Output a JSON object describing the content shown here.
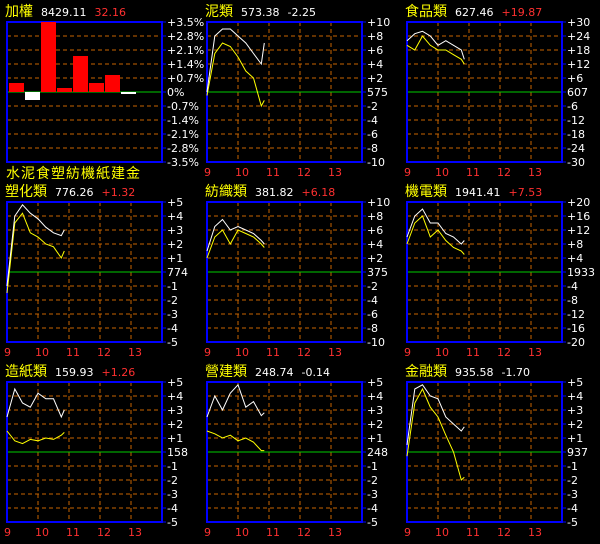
{
  "colors": {
    "background": "#000000",
    "frame": "#0000ff",
    "grid": "#c86400",
    "baseline": "#00cc00",
    "text": "#ffffff",
    "title": "#ffff00",
    "up": "#ff3030",
    "down": "#ffffff",
    "line_primary": "#ffff00",
    "line_secondary": "#ffffff",
    "bar_up": "#ff0000",
    "bar_down": "#ffffff"
  },
  "index_panel": {
    "name": "加權",
    "value": "8429.11",
    "change": "32.16",
    "change_dir": "up",
    "yticks": [
      "+3.5%",
      "+2.8%",
      "+2.1%",
      "+1.4%",
      "+0.7%",
      "0%",
      "-0.7%",
      "-1.4%",
      "-2.1%",
      "-2.8%",
      "-3.5%"
    ],
    "category_labels": [
      "水",
      "泥",
      "食",
      "塑",
      "紡",
      "機",
      "紙",
      "建",
      "金"
    ]
  },
  "panels": [
    {
      "name": "泥類",
      "value": "573.38",
      "change": "-2.25",
      "change_dir": "down",
      "yticks": [
        "+10",
        "+8",
        "+6",
        "+4",
        "+2",
        "575",
        "-2",
        "-4",
        "-6",
        "-8",
        "-10"
      ],
      "xticks": [
        "9",
        "10",
        "11",
        "12",
        "13"
      ]
    },
    {
      "name": "食品類",
      "value": "627.46",
      "change": "+19.87",
      "change_dir": "up",
      "yticks": [
        "+30",
        "+24",
        "+18",
        "+12",
        "+6",
        "607",
        "-6",
        "-12",
        "-18",
        "-24",
        "-30"
      ],
      "xticks": [
        "9",
        "10",
        "11",
        "12",
        "13"
      ]
    },
    {
      "name": "塑化類",
      "value": "776.26",
      "change": "+1.32",
      "change_dir": "up",
      "yticks": [
        "+5",
        "+4",
        "+3",
        "+2",
        "+1",
        "774",
        "-1",
        "-2",
        "-3",
        "-4",
        "-5"
      ],
      "xticks": [
        "9",
        "10",
        "11",
        "12",
        "13"
      ]
    },
    {
      "name": "紡織類",
      "value": "381.82",
      "change": "+6.18",
      "change_dir": "up",
      "yticks": [
        "+10",
        "+8",
        "+6",
        "+4",
        "+2",
        "375",
        "-2",
        "-4",
        "-6",
        "-8",
        "-10"
      ],
      "xticks": [
        "9",
        "10",
        "11",
        "12",
        "13"
      ]
    },
    {
      "name": "機電類",
      "value": "1941.41",
      "change": "+7.53",
      "change_dir": "up",
      "yticks": [
        "+20",
        "+16",
        "+12",
        "+8",
        "+4",
        "1933",
        "-4",
        "-8",
        "-12",
        "-16",
        "-20"
      ],
      "xticks": [
        "9",
        "10",
        "11",
        "12",
        "13"
      ]
    },
    {
      "name": "造紙類",
      "value": "159.93",
      "change": "+1.26",
      "change_dir": "up",
      "yticks": [
        "+5",
        "+4",
        "+3",
        "+2",
        "+1",
        "158",
        "-1",
        "-2",
        "-3",
        "-4",
        "-5"
      ],
      "xticks": [
        "9",
        "10",
        "11",
        "12",
        "13"
      ]
    },
    {
      "name": "營建類",
      "value": "248.74",
      "change": "-0.14",
      "change_dir": "down",
      "yticks": [
        "+5",
        "+4",
        "+3",
        "+2",
        "+1",
        "248",
        "-1",
        "-2",
        "-3",
        "-4",
        "-5"
      ],
      "xticks": [
        "9",
        "10",
        "11",
        "12",
        "13"
      ]
    },
    {
      "name": "金融類",
      "value": "935.58",
      "change": "-1.70",
      "change_dir": "down",
      "yticks": [
        "+5",
        "+4",
        "+3",
        "+2",
        "+1",
        "937",
        "-1",
        "-2",
        "-3",
        "-4",
        "-5"
      ],
      "xticks": [
        "9",
        "10",
        "11",
        "12",
        "13"
      ]
    }
  ],
  "chart_data": [
    {
      "type": "bar",
      "title": "加權",
      "categories": [
        "水泥",
        "食品",
        "塑化",
        "紡織",
        "機電",
        "造紙",
        "營建",
        "金融"
      ],
      "values": [
        0.45,
        -0.4,
        3.5,
        0.2,
        1.8,
        0.45,
        0.85,
        -0.1
      ],
      "ylim": [
        -3.5,
        3.5
      ],
      "unit": "%"
    },
    {
      "type": "line",
      "title": "泥類",
      "x": [
        9,
        9.25,
        9.5,
        9.75,
        10,
        10.25,
        10.5,
        10.75,
        10.85
      ],
      "ylim": [
        -10,
        10
      ],
      "series": [
        {
          "values": [
            -0.5,
            5.5,
            7,
            6.5,
            5,
            3,
            2,
            -2,
            -1.2
          ]
        },
        {
          "values": [
            0,
            8,
            9,
            9,
            8,
            7,
            5.5,
            4,
            7
          ]
        }
      ]
    },
    {
      "type": "line",
      "title": "食品類",
      "x": [
        9,
        9.25,
        9.5,
        9.75,
        10,
        10.25,
        10.5,
        10.75,
        10.85
      ],
      "ylim": [
        -30,
        30
      ],
      "series": [
        {
          "values": [
            20,
            18,
            24,
            20,
            18,
            18,
            16,
            14,
            12
          ]
        },
        {
          "values": [
            22,
            25,
            26,
            24,
            20,
            22,
            20,
            18,
            14
          ]
        }
      ]
    },
    {
      "type": "line",
      "title": "塑化類",
      "x": [
        9,
        9.25,
        9.5,
        9.75,
        10,
        10.25,
        10.5,
        10.75,
        10.85
      ],
      "ylim": [
        -5,
        5
      ],
      "series": [
        {
          "values": [
            -1.5,
            3.5,
            4.2,
            2.8,
            2.5,
            2,
            1.8,
            1,
            1.5
          ]
        },
        {
          "values": [
            -1,
            4,
            4.8,
            4.2,
            3.8,
            3.2,
            2.8,
            2.6,
            3
          ]
        }
      ]
    },
    {
      "type": "line",
      "title": "紡織類",
      "x": [
        9,
        9.25,
        9.5,
        9.75,
        10,
        10.25,
        10.5,
        10.75,
        10.85
      ],
      "ylim": [
        -10,
        10
      ],
      "series": [
        {
          "values": [
            2,
            5,
            6,
            4,
            6,
            5.5,
            5,
            4,
            3.5
          ]
        },
        {
          "values": [
            3,
            6.5,
            7.5,
            6,
            6.5,
            6,
            5.5,
            4.5,
            4
          ]
        }
      ]
    },
    {
      "type": "line",
      "title": "機電類",
      "x": [
        9,
        9.25,
        9.5,
        9.75,
        10,
        10.25,
        10.5,
        10.75,
        10.85
      ],
      "ylim": [
        -20,
        20
      ],
      "series": [
        {
          "values": [
            8,
            14,
            16,
            10,
            12,
            9,
            7,
            6,
            5
          ]
        },
        {
          "values": [
            10,
            16,
            18,
            14,
            14,
            11,
            10,
            8,
            9
          ]
        }
      ]
    },
    {
      "type": "line",
      "title": "造紙類",
      "x": [
        9,
        9.25,
        9.5,
        9.75,
        10,
        10.25,
        10.5,
        10.75,
        10.85
      ],
      "ylim": [
        -5,
        5
      ],
      "series": [
        {
          "values": [
            1.5,
            0.8,
            0.6,
            0.9,
            0.8,
            1,
            0.9,
            1.2,
            1.4
          ]
        },
        {
          "values": [
            2.5,
            4.5,
            3.5,
            3.2,
            4.2,
            3.8,
            3.8,
            2.5,
            3
          ]
        }
      ]
    },
    {
      "type": "line",
      "title": "營建類",
      "x": [
        9,
        9.25,
        9.5,
        9.75,
        10,
        10.25,
        10.5,
        10.75,
        10.85
      ],
      "ylim": [
        -5,
        5
      ],
      "series": [
        {
          "values": [
            1.5,
            1.3,
            1,
            1.2,
            0.8,
            1,
            0.7,
            0.1,
            0.1
          ]
        },
        {
          "values": [
            2.5,
            4,
            3,
            4.2,
            4.8,
            3.2,
            3.6,
            2.6,
            2.8
          ]
        }
      ]
    },
    {
      "type": "line",
      "title": "金融類",
      "x": [
        9,
        9.25,
        9.5,
        9.75,
        10,
        10.25,
        10.5,
        10.75,
        10.85
      ],
      "ylim": [
        -5,
        5
      ],
      "series": [
        {
          "values": [
            -0.3,
            3.5,
            4.5,
            3.2,
            2.5,
            1.2,
            0,
            -2,
            -1.8
          ]
        },
        {
          "values": [
            0.5,
            4.5,
            4.8,
            4,
            3.8,
            2.5,
            2,
            1.5,
            1.8
          ]
        }
      ]
    }
  ]
}
